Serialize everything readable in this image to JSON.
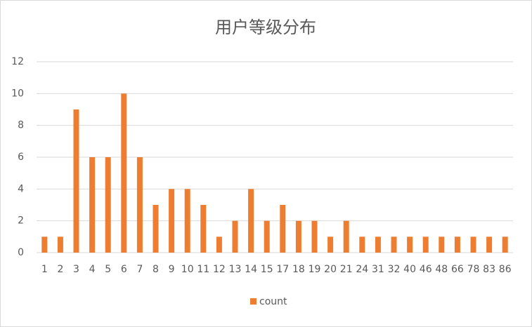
{
  "chart_data": {
    "type": "bar",
    "title": "用户等级分布",
    "categories": [
      "1",
      "2",
      "3",
      "4",
      "5",
      "6",
      "7",
      "8",
      "9",
      "10",
      "11",
      "12",
      "13",
      "14",
      "15",
      "17",
      "18",
      "19",
      "20",
      "21",
      "24",
      "31",
      "32",
      "40",
      "46",
      "48",
      "66",
      "78",
      "83",
      "86"
    ],
    "series": [
      {
        "name": "count",
        "color": "#ed7d31",
        "values": [
          1,
          1,
          9,
          6,
          6,
          10,
          6,
          3,
          4,
          4,
          3,
          1,
          2,
          4,
          2,
          3,
          2,
          2,
          1,
          2,
          1,
          1,
          1,
          1,
          1,
          1,
          1,
          1,
          1,
          1
        ]
      }
    ],
    "ylim": [
      0,
      12
    ],
    "yticks": [
      0,
      2,
      4,
      6,
      8,
      10,
      12
    ],
    "grid": true,
    "legend": "bottom"
  }
}
